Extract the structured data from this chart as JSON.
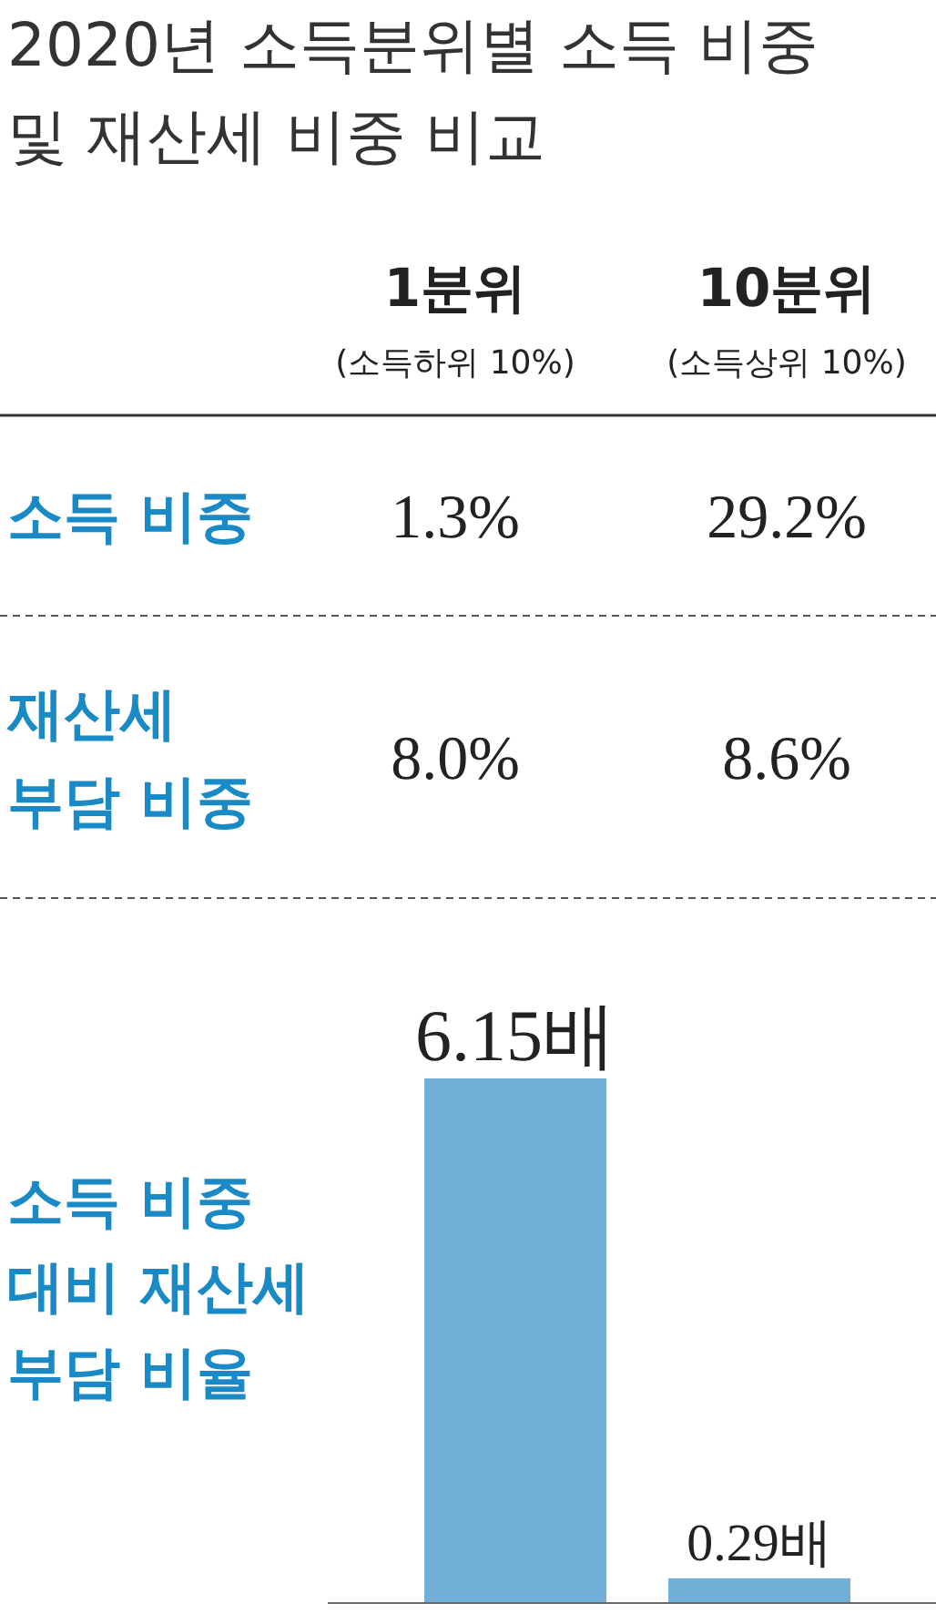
{
  "chart_data": [
    {
      "type": "other",
      "title": "2020년 소득분위별 소득 비중\n및 재산세 비중 비교",
      "annotations": [
        "1분위",
        "10분위",
        "(소득하위 10%)",
        "(소득상위 10%)",
        "소득 비중",
        "1.3%",
        "29.2%",
        "재산세\n부담 비중",
        "8.0%",
        "8.6%"
      ]
    },
    {
      "type": "bar",
      "ylabel": "소득 비중\n대비 재산세\n부담 비율",
      "categories": [
        null,
        null
      ],
      "values": [
        6.15,
        0.29
      ],
      "color": "#72afd6",
      "value_labels": [
        "6.15배",
        "0.29배"
      ]
    }
  ]
}
